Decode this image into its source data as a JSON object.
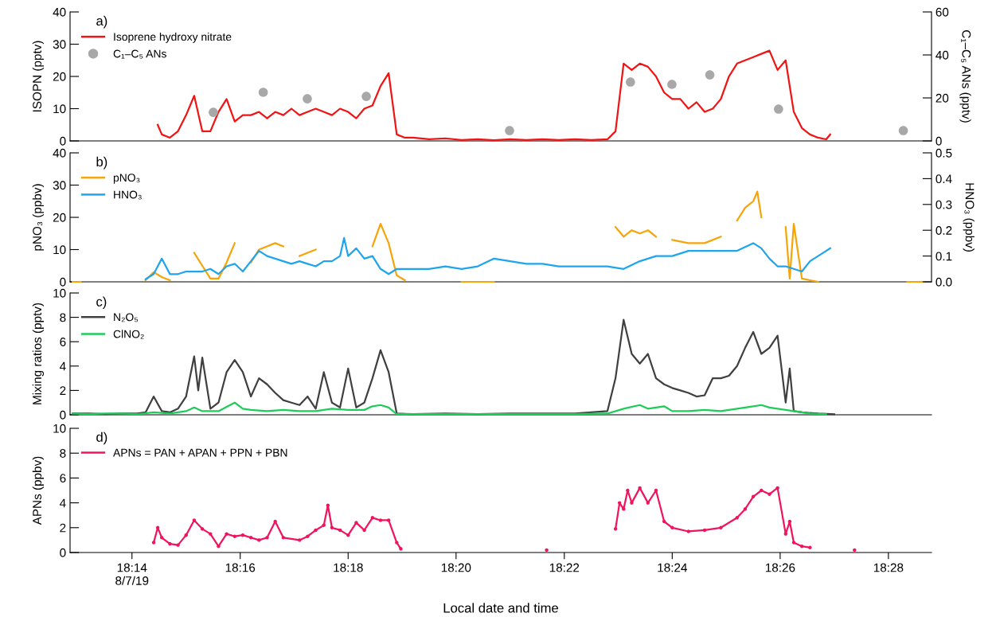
{
  "chart_data": [
    {
      "type": "line",
      "annotations": [
        "a)"
      ],
      "ylabel": "ISOPN (pptv)",
      "y2label": "C₁–C₅ ANs (pptv)",
      "xlim": [
        18.2142,
        18.48
      ],
      "ylim": [
        0,
        40
      ],
      "yticks": [
        0,
        10,
        20,
        30,
        40
      ],
      "y2lim": [
        0,
        60
      ],
      "y2ticks": [
        0,
        20,
        40,
        60
      ],
      "tick_labels": "y",
      "legend": "top left",
      "grid": false,
      "series": [
        {
          "name": "Isoprene hydroxy nitrate",
          "color": "#f01414",
          "x": [
            18.24125,
            18.2425,
            18.245,
            18.2475,
            18.25,
            18.2525,
            18.255,
            18.2575,
            18.26,
            18.2625,
            18.265,
            18.2675,
            18.27,
            18.2725,
            18.275,
            18.2775,
            18.28,
            18.2825,
            18.285,
            18.2875,
            18.29,
            18.2925,
            18.295,
            18.2975,
            18.3,
            18.3025,
            18.305,
            18.3075,
            18.31,
            18.3125,
            18.315,
            18.3175,
            18.32,
            18.325,
            18.33,
            18.335,
            18.34,
            18.345,
            18.35,
            18.355,
            18.36,
            18.365,
            18.37,
            18.375,
            18.38,
            18.3825,
            18.385,
            18.3875,
            18.39,
            18.3925,
            18.395,
            18.3975,
            18.4,
            18.4025,
            18.405,
            18.4075,
            18.41,
            18.4125,
            18.415,
            18.4175,
            18.42,
            18.4225,
            18.425,
            18.4275,
            18.43,
            18.4325,
            18.435,
            18.4375,
            18.44,
            18.4425,
            18.445,
            18.4475,
            18.44875
          ],
          "values": [
            5,
            2,
            1,
            3,
            8,
            14,
            3,
            3,
            9,
            13,
            6,
            8,
            8,
            9,
            7,
            9,
            8,
            10,
            8,
            9,
            10,
            9,
            8,
            10,
            9,
            7,
            10,
            11,
            17,
            21,
            2,
            1,
            1,
            0.5,
            0.8,
            0.3,
            0.5,
            0.2,
            0.5,
            0.3,
            0.5,
            0.3,
            0.5,
            0.3,
            0.5,
            3,
            24,
            22,
            24,
            23,
            20,
            15,
            13,
            13,
            10,
            12,
            9,
            10,
            13,
            20,
            24,
            25,
            26,
            27,
            28,
            22,
            25,
            9,
            4,
            2,
            1,
            0.5,
            2
          ]
        },
        {
          "name": "C₁–C₅ ANs",
          "type": "scatter",
          "axis": "y2",
          "marker": "circle",
          "color": "#a8a8a8",
          "x": [
            18.2584,
            18.2738,
            18.2874,
            18.3056,
            18.3498,
            18.3871,
            18.3999,
            18.4116,
            18.4328,
            18.4713
          ],
          "values": [
            13.3,
            22.6,
            19.6,
            20.7,
            4.8,
            27.4,
            26.3,
            30.7,
            14.8,
            4.8
          ]
        }
      ]
    },
    {
      "type": "line",
      "annotations": [
        "b)"
      ],
      "ylabel": "pNO₃ (ppbv)",
      "y2label": "HNO₃ (ppbv)",
      "xlim": [
        18.2142,
        18.48
      ],
      "ylim": [
        0,
        40
      ],
      "yticks": [
        0,
        10,
        20,
        30,
        40
      ],
      "y2lim": [
        0,
        0.5
      ],
      "y2ticks": [
        {
          "value": 0,
          "label": "0.0"
        },
        0.1,
        0.2,
        0.3,
        0.4,
        0.5
      ],
      "tick_labels": "y",
      "legend": "top left",
      "grid": false,
      "series": [
        {
          "name": "pNO₃",
          "color": "#f5a50a",
          "x": [
            18.215,
            18.2175,
            18.22,
            18.2375,
            18.24,
            18.2425,
            18.245,
            18.2475,
            18.2525,
            18.255,
            18.2575,
            18.26,
            18.2625,
            18.265,
            18.2675,
            18.27,
            18.2725,
            18.275,
            18.2775,
            18.28,
            18.2825,
            18.285,
            18.2875,
            18.29,
            18.2925,
            18.3075,
            18.31,
            18.3125,
            18.315,
            18.3175,
            18.32,
            18.335,
            18.34,
            18.345,
            18.35,
            18.3825,
            18.385,
            18.3875,
            18.39,
            18.3925,
            18.395,
            18.3975,
            18.4,
            18.405,
            18.41,
            18.415,
            18.4175,
            18.42,
            18.4225,
            18.425,
            18.42625,
            18.4275,
            18.43,
            18.435,
            18.43625,
            18.4375,
            18.44,
            18.4425,
            18.445,
            18.4475,
            18.4725,
            18.475,
            18.4775
          ],
          "values": [
            0,
            0,
            null,
            0.5,
            3,
            1.5,
            0.5,
            null,
            9,
            5,
            1,
            1,
            6,
            12,
            null,
            6,
            10,
            11,
            12,
            11,
            null,
            8,
            9,
            10,
            null,
            11,
            18,
            12,
            2,
            0.5,
            null,
            0,
            0,
            0,
            null,
            17,
            14,
            16,
            15,
            16,
            14,
            null,
            13,
            12,
            12,
            14,
            null,
            19,
            23,
            25,
            28,
            20,
            null,
            17,
            1,
            18,
            1,
            0.5,
            0,
            null,
            0,
            0,
            0
          ]
        },
        {
          "name": "HNO₃",
          "axis": "y2",
          "color": "#1ea5ee",
          "x": [
            18.2375,
            18.24,
            18.2425,
            18.245,
            18.2475,
            18.25,
            18.2525,
            18.255,
            18.2575,
            18.26,
            18.2625,
            18.265,
            18.2675,
            18.27,
            18.2725,
            18.275,
            18.2775,
            18.28,
            18.2825,
            18.285,
            18.2875,
            18.29,
            18.2925,
            18.295,
            18.2975,
            18.29875,
            18.3,
            18.3025,
            18.305,
            18.3075,
            18.31,
            18.3125,
            18.315,
            18.32,
            18.325,
            18.33,
            18.335,
            18.34,
            18.345,
            18.35,
            18.355,
            18.36,
            18.365,
            18.37,
            18.375,
            18.38,
            18.385,
            18.39,
            18.395,
            18.4,
            18.405,
            18.41,
            18.415,
            18.42,
            18.425,
            18.4275,
            18.43,
            18.4325,
            18.435,
            18.4375,
            18.44,
            18.4425,
            18.445,
            18.4475,
            18.44875
          ],
          "values": [
            0.01,
            0.03,
            0.09,
            0.03,
            0.03,
            0.04,
            0.04,
            0.04,
            0.05,
            0.03,
            0.06,
            0.07,
            0.04,
            0.08,
            0.12,
            0.1,
            0.09,
            0.08,
            0.07,
            0.08,
            0.07,
            0.06,
            0.08,
            0.08,
            0.1,
            0.17,
            0.1,
            0.13,
            0.09,
            0.1,
            0.05,
            0.03,
            0.05,
            0.05,
            0.05,
            0.06,
            0.05,
            0.06,
            0.09,
            0.08,
            0.07,
            0.07,
            0.06,
            0.06,
            0.06,
            0.06,
            0.05,
            0.08,
            0.1,
            0.1,
            0.12,
            0.12,
            0.12,
            0.12,
            0.15,
            0.13,
            0.09,
            0.06,
            0.06,
            0.05,
            0.04,
            0.08,
            0.1,
            0.12,
            0.13
          ]
        }
      ]
    },
    {
      "type": "line",
      "annotations": [
        "c)"
      ],
      "ylabel": "Mixing ratios (pptv)",
      "xlim": [
        18.2142,
        18.48
      ],
      "ylim": [
        0,
        10
      ],
      "yticks": [
        0,
        2,
        4,
        6,
        8,
        10
      ],
      "tick_labels": "y",
      "legend": "top left",
      "grid": false,
      "series": [
        {
          "name": "N₂O₅",
          "color": "#404040",
          "x": [
            18.215,
            18.22,
            18.225,
            18.23,
            18.235,
            18.2375,
            18.24,
            18.2425,
            18.245,
            18.2475,
            18.25,
            18.2525,
            18.25375,
            18.255,
            18.2575,
            18.26,
            18.2625,
            18.265,
            18.2675,
            18.27,
            18.2725,
            18.275,
            18.2775,
            18.28,
            18.2825,
            18.285,
            18.2875,
            18.29,
            18.2925,
            18.295,
            18.2975,
            18.3,
            18.3025,
            18.305,
            18.3075,
            18.31,
            18.3125,
            18.315,
            18.32,
            18.33,
            18.34,
            18.35,
            18.36,
            18.37,
            18.38,
            18.3825,
            18.385,
            18.3875,
            18.39,
            18.3925,
            18.395,
            18.3975,
            18.4,
            18.4025,
            18.405,
            18.4075,
            18.41,
            18.4125,
            18.415,
            18.4175,
            18.42,
            18.4225,
            18.425,
            18.4275,
            18.43,
            18.4325,
            18.435,
            18.43625,
            18.4375,
            18.44,
            18.445,
            18.45
          ],
          "values": [
            0.1,
            0.1,
            0.05,
            0.1,
            0.1,
            0.2,
            1.5,
            0.3,
            0.2,
            0.5,
            1.5,
            4.8,
            2,
            4.7,
            0.5,
            1,
            3.5,
            4.5,
            3.5,
            1.5,
            3,
            2.5,
            1.8,
            1.2,
            1,
            0.8,
            1.5,
            0.5,
            3.5,
            1,
            0.6,
            3.8,
            0.6,
            1,
            3,
            5.3,
            3.5,
            0.1,
            0.05,
            0.1,
            0.05,
            0.1,
            0.1,
            0.1,
            0.3,
            3,
            7.8,
            5,
            4.2,
            5,
            3,
            2.5,
            2.2,
            2,
            1.8,
            1.5,
            1.6,
            3,
            3,
            3.2,
            4,
            5.5,
            6.8,
            5,
            5.5,
            6.5,
            1,
            3.8,
            0.3,
            0.2,
            0.1,
            0.05
          ]
        },
        {
          "name": "ClNO₂",
          "color": "#1ecc5a",
          "x": [
            18.215,
            18.22,
            18.225,
            18.23,
            18.235,
            18.24,
            18.245,
            18.25,
            18.2525,
            18.255,
            18.26,
            18.265,
            18.2675,
            18.27,
            18.275,
            18.28,
            18.285,
            18.29,
            18.295,
            18.3,
            18.305,
            18.3075,
            18.31,
            18.3125,
            18.315,
            18.32,
            18.33,
            18.34,
            18.35,
            18.36,
            18.37,
            18.38,
            18.385,
            18.39,
            18.3925,
            18.3975,
            18.4,
            18.405,
            18.41,
            18.415,
            18.42,
            18.425,
            18.4275,
            18.43,
            18.4325,
            18.4375,
            18.4425,
            18.4475
          ],
          "values": [
            0.1,
            0.05,
            0.1,
            0.1,
            0.05,
            0.2,
            0.1,
            0.3,
            0.6,
            0.3,
            0.3,
            1.0,
            0.5,
            0.4,
            0.3,
            0.4,
            0.3,
            0.3,
            0.5,
            0.4,
            0.4,
            0.7,
            0.8,
            0.6,
            0.05,
            0.05,
            0.05,
            0.05,
            0.05,
            0.05,
            0.05,
            0.1,
            0.5,
            0.8,
            0.5,
            0.7,
            0.3,
            0.3,
            0.4,
            0.3,
            0.5,
            0.7,
            0.8,
            0.6,
            0.5,
            0.3,
            0.1,
            0.05
          ]
        }
      ]
    },
    {
      "type": "line",
      "annotations": [
        "d)"
      ],
      "ylabel": "APNs (ppbv)",
      "xlabel": "Local date and time",
      "xlim": [
        18.2142,
        18.48
      ],
      "xticks": [
        {
          "value": 18.2333,
          "label": "18:14\n8/7/19"
        },
        {
          "value": 18.2667,
          "label": "18:16"
        },
        {
          "value": 18.3,
          "label": "18:18"
        },
        {
          "value": 18.3333,
          "label": "18:20"
        },
        {
          "value": 18.3667,
          "label": "18:22"
        },
        {
          "value": 18.4,
          "label": "18:24"
        },
        {
          "value": 18.4333,
          "label": "18:26"
        },
        {
          "value": 18.4667,
          "label": "18:28"
        }
      ],
      "ylim": [
        0,
        10
      ],
      "yticks": [
        0,
        2,
        4,
        6,
        8,
        10
      ],
      "legend": "top left",
      "grid": false,
      "marker": "circle",
      "series": [
        {
          "name": "APNs = PAN + APAN + PPN + PBN",
          "color": "#f0145f",
          "x": [
            18.24,
            18.24125,
            18.2425,
            18.245,
            18.2475,
            18.25,
            18.2525,
            18.255,
            18.2575,
            18.26,
            18.2625,
            18.265,
            18.2675,
            18.27,
            18.2725,
            18.275,
            18.2775,
            18.28,
            18.285,
            18.2875,
            18.29,
            18.2925,
            18.29375,
            18.295,
            18.2975,
            18.3,
            18.3025,
            18.305,
            18.3075,
            18.31,
            18.3125,
            18.315,
            18.31625,
            18.3175,
            18.36,
            18.36125,
            18.3625,
            18.3825,
            18.38375,
            18.385,
            18.38625,
            18.3875,
            18.39,
            18.3925,
            18.395,
            18.3975,
            18.4,
            18.405,
            18.41,
            18.415,
            18.42,
            18.4225,
            18.425,
            18.4275,
            18.43,
            18.4325,
            18.435,
            18.43625,
            18.4375,
            18.44,
            18.4425,
            18.445,
            18.45625
          ],
          "values": [
            0.8,
            2,
            1.2,
            0.7,
            0.6,
            1.4,
            2.6,
            1.9,
            1.5,
            0.5,
            1.5,
            1.3,
            1.4,
            1.2,
            1.0,
            1.2,
            2.5,
            1.2,
            1.0,
            1.3,
            1.8,
            2.2,
            3.8,
            2.0,
            1.8,
            1.4,
            2.4,
            1.8,
            2.8,
            2.6,
            2.6,
            0.8,
            0.3,
            null,
            null,
            0.2,
            null,
            1.9,
            4,
            3.5,
            5,
            4,
            5.2,
            4,
            5,
            2.5,
            2,
            1.7,
            1.8,
            2.0,
            2.8,
            3.5,
            4.5,
            5,
            4.7,
            5.2,
            1.5,
            2.5,
            0.8,
            0.5,
            0.4,
            null,
            0.2
          ]
        }
      ]
    }
  ]
}
